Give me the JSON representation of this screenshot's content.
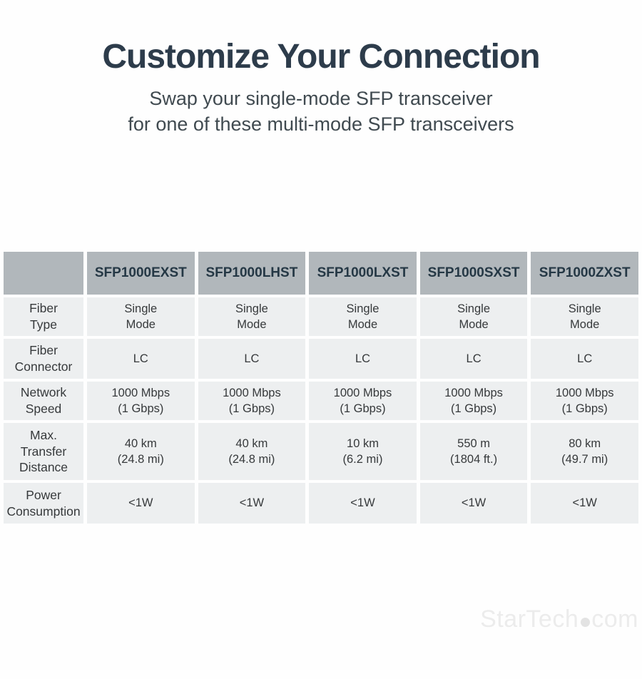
{
  "colors": {
    "background": "#fefefe",
    "title_text": "#2d3c4b",
    "subtitle_text": "#404a50",
    "header_cell_bg": "#b1b7bb",
    "header_cell_text": "#253845",
    "body_cell_bg": "#edeff0",
    "body_cell_text": "#36393b",
    "watermark_text": "#ececec"
  },
  "header": {
    "title": "Customize Your Connection",
    "subtitle_line1": "Swap your single-mode SFP transceiver",
    "subtitle_line2": "for one of these multi-mode SFP transceivers"
  },
  "chart_data": {
    "type": "table",
    "title": "Customize Your Connection",
    "subtitle": "Swap your single-mode SFP transceiver for one of these multi-mode SFP transceivers",
    "corner_label": "",
    "columns": [
      "SFP1000EXST",
      "SFP1000LHST",
      "SFP1000LXST",
      "SFP1000SXST",
      "SFP1000ZXST"
    ],
    "rows": [
      {
        "label": "Fiber\nType",
        "values": [
          "Single\nMode",
          "Single\nMode",
          "Single\nMode",
          "Single\nMode",
          "Single\nMode"
        ]
      },
      {
        "label": "Fiber\nConnector",
        "values": [
          "LC",
          "LC",
          "LC",
          "LC",
          "LC"
        ]
      },
      {
        "label": "Network\nSpeed",
        "values": [
          "1000 Mbps\n(1 Gbps)",
          "1000 Mbps\n(1 Gbps)",
          "1000 Mbps\n(1 Gbps)",
          "1000 Mbps\n(1 Gbps)",
          "1000 Mbps\n(1 Gbps)"
        ]
      },
      {
        "label": "Max.\nTransfer\nDistance",
        "values": [
          "40 km\n(24.8 mi)",
          "40 km\n(24.8 mi)",
          "10 km\n(6.2 mi)",
          "550 m\n(1804 ft.)",
          "80 km\n(49.7 mi)"
        ]
      },
      {
        "label": "Power\nConsumption",
        "values": [
          "<1W",
          "<1W",
          "<1W",
          "<1W",
          "<1W"
        ]
      }
    ]
  },
  "watermark": {
    "brand": "StarTech",
    "suffix": "com",
    "dot_icon": "circle"
  }
}
